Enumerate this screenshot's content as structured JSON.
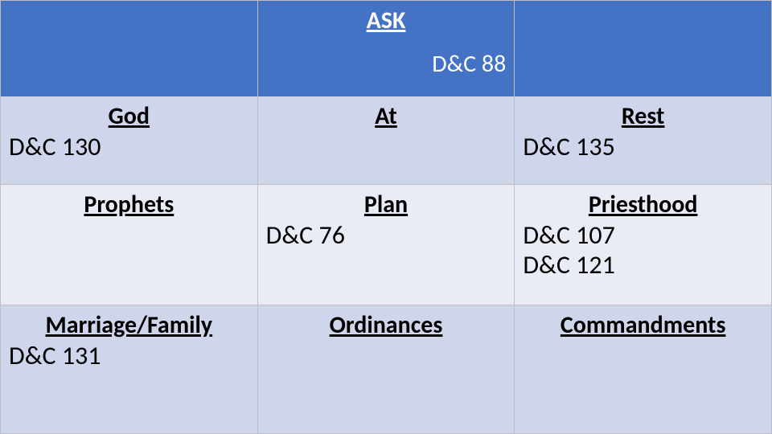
{
  "colors": {
    "header_bg": "#4472c4",
    "header_text": "#ffffff",
    "row_a_bg": "#cfd5ea",
    "row_b_bg": "#e9ebf5",
    "border": "#bfbfbf",
    "text": "#000000"
  },
  "header": {
    "title": "ASK",
    "reference": "D&C 88"
  },
  "grid": {
    "type": "table",
    "columns": 3,
    "rows": [
      [
        {
          "topic": "God",
          "reference": "D&C 130"
        },
        {
          "topic": "At",
          "reference": ""
        },
        {
          "topic": "Rest",
          "reference": "D&C 135"
        }
      ],
      [
        {
          "topic": "Prophets",
          "reference": ""
        },
        {
          "topic": "Plan",
          "reference": "D&C 76"
        },
        {
          "topic": "Priesthood",
          "reference": "D&C 107\nD&C 121"
        }
      ],
      [
        {
          "topic": "Marriage/Family",
          "reference": "D&C 131"
        },
        {
          "topic": "Ordinances",
          "reference": ""
        },
        {
          "topic": "Commandments",
          "reference": ""
        }
      ]
    ]
  }
}
